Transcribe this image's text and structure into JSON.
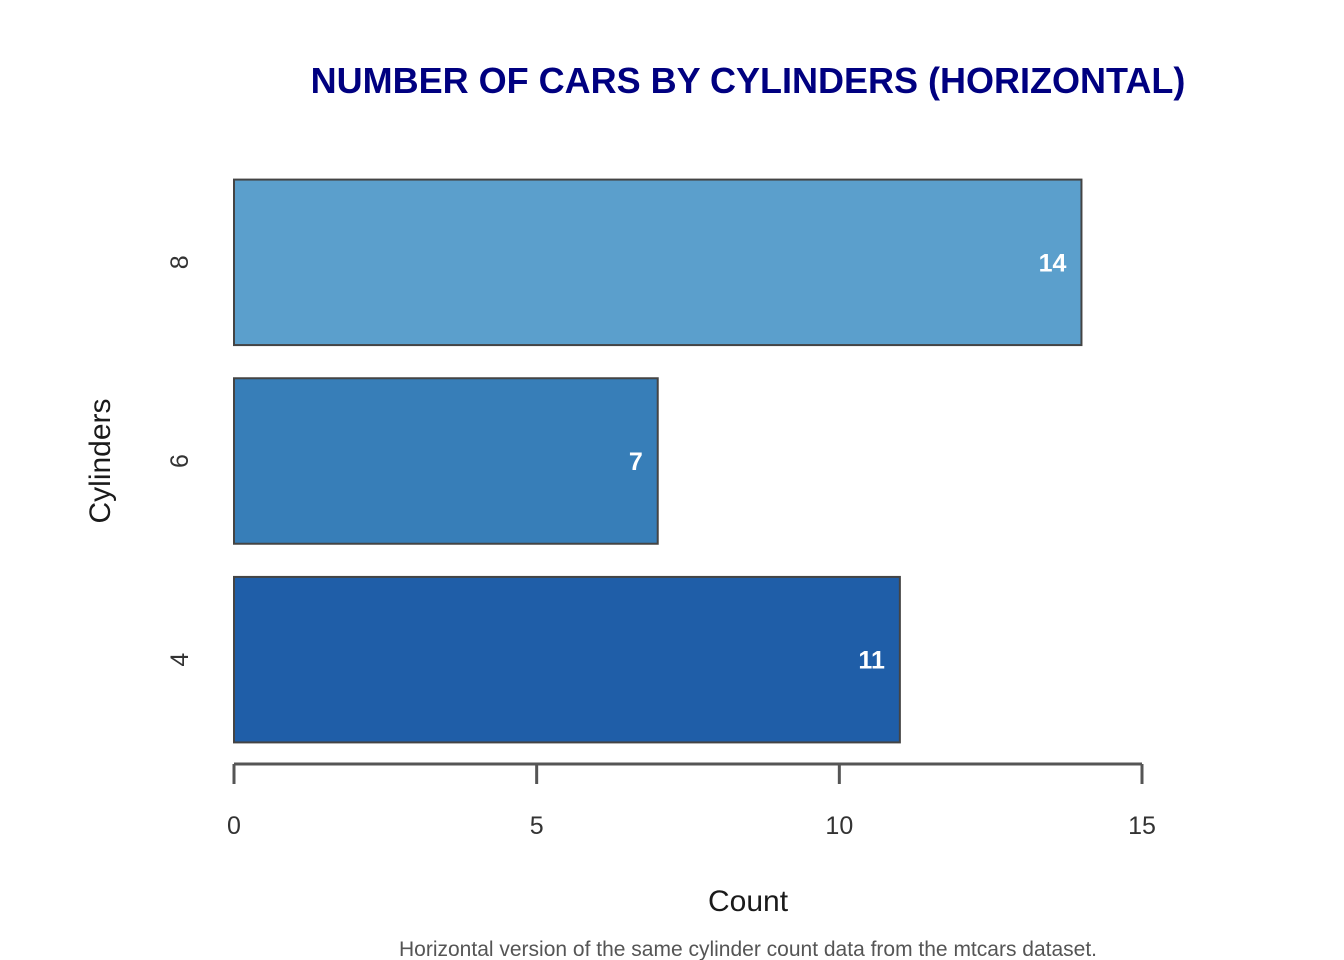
{
  "chart_data": {
    "type": "bar",
    "orientation": "horizontal",
    "title": "NUMBER OF CARS BY CYLINDERS (HORIZONTAL)",
    "xlabel": "Count",
    "ylabel": "Cylinders",
    "caption": "Horizontal version of the same cylinder count data from the mtcars dataset.",
    "categories": [
      "4",
      "6",
      "8"
    ],
    "values": [
      11,
      7,
      14
    ],
    "value_labels": [
      "11",
      "7",
      "14"
    ],
    "bar_colors": [
      "#1f5ea8",
      "#377eb8",
      "#5b9fcc"
    ],
    "xlim": [
      0,
      15
    ],
    "x_ticks": [
      0,
      5,
      10,
      15
    ],
    "x_tick_labels": [
      "0",
      "5",
      "10",
      "15"
    ],
    "grid": false,
    "legend": "none"
  },
  "colors": {
    "title": "#000080",
    "bar_border": "#444444",
    "axis": "#555555",
    "value_label": "#ffffff"
  }
}
